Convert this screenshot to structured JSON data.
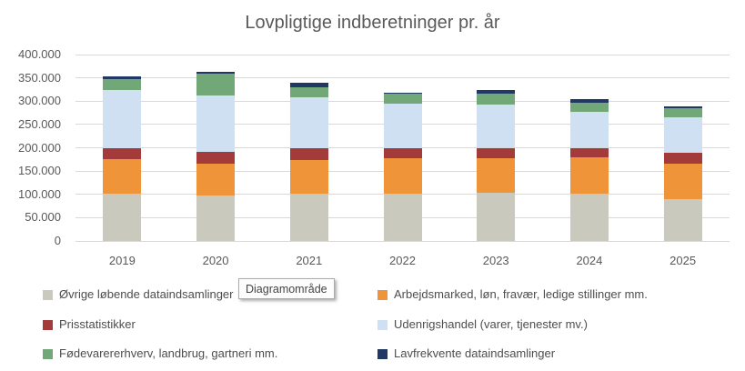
{
  "title": "Lovpligtige indberetninger pr. år",
  "tooltip": {
    "label": "Diagramområde"
  },
  "colors": {
    "gridline": "#d9d9d9",
    "axis_text": "#595959",
    "title_text": "#595959",
    "legend_text": "#4d4d4d"
  },
  "chart_data": {
    "type": "bar",
    "stacked": true,
    "title": "Lovpligtige indberetninger pr. år",
    "xlabel": "",
    "ylabel": "",
    "grid": true,
    "legend_position": "bottom",
    "legend_columns": 2,
    "ylim": [
      0,
      400000
    ],
    "categories": [
      "2019",
      "2020",
      "2021",
      "2022",
      "2023",
      "2024",
      "2025"
    ],
    "series": [
      {
        "name": "Øvrige løbende dataindsamlinger",
        "color": "#C9C9BE",
        "values": [
          102000,
          98000,
          101000,
          102000,
          103000,
          102000,
          89000
        ]
      },
      {
        "name": "Arbejdsmarked, løn, fravær, ledige stillinger mm.",
        "color": "#F0943A",
        "values": [
          73000,
          68000,
          73000,
          75000,
          74000,
          78000,
          77000
        ]
      },
      {
        "name": "Prisstatistikker",
        "color": "#A33B3B",
        "values": [
          24000,
          26000,
          25000,
          22000,
          23000,
          20000,
          23000
        ]
      },
      {
        "name": "Udenrigshandel (varer, tjenester mv.)",
        "color": "#CFE0F2",
        "values": [
          125000,
          120000,
          110000,
          96000,
          93000,
          77000,
          76000
        ]
      },
      {
        "name": "Fødevarererhverv, landbrug, gartneri mm.",
        "color": "#72A877",
        "values": [
          23000,
          47000,
          21000,
          21000,
          24000,
          20000,
          19000
        ]
      },
      {
        "name": "Lavfrekvente dataindsamlinger",
        "color": "#1F3864",
        "values": [
          7000,
          4000,
          10000,
          3000,
          7000,
          7000,
          5000
        ]
      }
    ],
    "y_ticks": [
      {
        "value": 0,
        "label": "0"
      },
      {
        "value": 50000,
        "label": "50.000"
      },
      {
        "value": 100000,
        "label": "100.000"
      },
      {
        "value": 150000,
        "label": "150.000"
      },
      {
        "value": 200000,
        "label": "200.000"
      },
      {
        "value": 250000,
        "label": "250.000"
      },
      {
        "value": 300000,
        "label": "300.000"
      },
      {
        "value": 350000,
        "label": "350.000"
      },
      {
        "value": 400000,
        "label": "400.000"
      }
    ]
  }
}
